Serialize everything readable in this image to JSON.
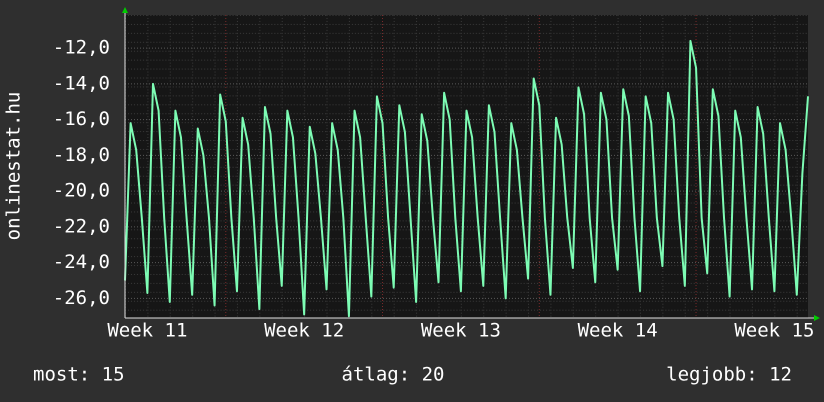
{
  "chart_data": {
    "type": "line",
    "ylabel": "onlinestat.hu",
    "x": [
      0,
      0.25,
      0.5,
      0.75,
      1,
      1.25,
      1.5,
      1.75,
      2,
      2.25,
      2.5,
      2.75,
      3,
      3.25,
      3.5,
      3.75,
      4,
      4.25,
      4.5,
      4.75,
      5,
      5.25,
      5.5,
      5.75,
      6,
      6.25,
      6.5,
      6.75,
      7,
      7.25,
      7.5,
      7.75,
      8,
      8.25,
      8.5,
      8.75,
      9,
      9.25,
      9.5,
      9.75,
      10,
      10.25,
      10.5,
      10.75,
      11,
      11.25,
      11.5,
      11.75,
      12,
      12.25,
      12.5,
      12.75,
      13,
      13.25,
      13.5,
      13.75,
      14,
      14.25,
      14.5,
      14.75,
      15,
      15.25,
      15.5,
      15.75,
      16,
      16.25,
      16.5,
      16.75,
      17,
      17.25,
      17.5,
      17.75,
      18,
      18.25,
      18.5,
      18.75,
      19,
      19.25,
      19.5,
      19.75,
      20,
      20.25,
      20.5,
      20.75,
      21,
      21.25,
      21.5,
      21.75,
      22,
      22.25,
      22.5,
      22.75,
      23,
      23.25,
      23.5,
      23.75,
      24,
      24.25,
      24.5,
      24.75,
      25,
      25.25,
      25.5,
      25.75,
      26,
      26.25,
      26.5,
      26.75,
      27,
      27.25,
      27.5,
      27.75,
      28,
      28.25,
      28.5,
      28.75,
      29,
      29.25,
      29.5,
      29.75,
      30,
      30.25,
      30.5
    ],
    "series": [
      {
        "color": "#7dfcb4",
        "values": [
          -25,
          -16.2,
          -17.7,
          -21.5,
          -25.7,
          -14,
          -15.5,
          -21.5,
          -26.2,
          -15.5,
          -17,
          -21.5,
          -25.8,
          -16.5,
          -18,
          -21.5,
          -26.4,
          -14.6,
          -16.1,
          -21.5,
          -25.6,
          -15.9,
          -17.4,
          -21.5,
          -26.6,
          -15.3,
          -16.8,
          -21.5,
          -25.3,
          -15.5,
          -17,
          -21.5,
          -26.9,
          -16.4,
          -17.9,
          -21.5,
          -25.5,
          -16.2,
          -17.7,
          -21.5,
          -27,
          -15.5,
          -17,
          -21.5,
          -25.9,
          -14.7,
          -16.2,
          -21.5,
          -25.4,
          -15.2,
          -16.7,
          -21.5,
          -26.2,
          -15.7,
          -17.2,
          -21.5,
          -25.1,
          -14.5,
          -16,
          -21.5,
          -25.6,
          -15.5,
          -17,
          -21.5,
          -25.3,
          -15.2,
          -16.7,
          -21.5,
          -26,
          -16.2,
          -17.7,
          -21.5,
          -24.9,
          -13.7,
          -15.2,
          -21.5,
          -25.8,
          -15.9,
          -17.4,
          -21.5,
          -24.3,
          -14.2,
          -15.7,
          -21.5,
          -25.1,
          -14.5,
          -16,
          -21.5,
          -24.4,
          -14.3,
          -15.8,
          -21.5,
          -25.6,
          -14.7,
          -16.2,
          -21.5,
          -24.2,
          -14.5,
          -16,
          -21.5,
          -25.3,
          -11.6,
          -13.1,
          -21.5,
          -24.6,
          -14.3,
          -15.8,
          -21.5,
          -25.9,
          -15.5,
          -17,
          -21.5,
          -25.5,
          -15.3,
          -16.8,
          -21.5,
          -25.6,
          -16.2,
          -17.7,
          -21.5,
          -25.8,
          -19,
          -14.7
        ]
      }
    ],
    "xlim": [
      0,
      30.5
    ],
    "xticks": [
      {
        "value": 1,
        "label": "Week 11"
      },
      {
        "value": 8,
        "label": "Week 12"
      },
      {
        "value": 15,
        "label": "Week 13"
      },
      {
        "value": 22,
        "label": "Week 14"
      },
      {
        "value": 29,
        "label": "Week 15"
      }
    ],
    "xgrid": [
      4.5,
      11.5,
      18.5,
      25.5
    ],
    "ylim": [
      -27.1,
      -10.15
    ],
    "yticks": [
      {
        "value": -26,
        "label": "-26,0"
      },
      {
        "value": -24,
        "label": "-24,0"
      },
      {
        "value": -22,
        "label": "-22,0"
      },
      {
        "value": -20,
        "label": "-20,0"
      },
      {
        "value": -18,
        "label": "-18,0"
      },
      {
        "value": -16,
        "label": "-16,0"
      },
      {
        "value": -14,
        "label": "-14,0"
      },
      {
        "value": -12,
        "label": "-12,0"
      }
    ],
    "grid": true,
    "stats": [
      "most: 15",
      "átlag: 20",
      "legjobb: 12"
    ]
  }
}
